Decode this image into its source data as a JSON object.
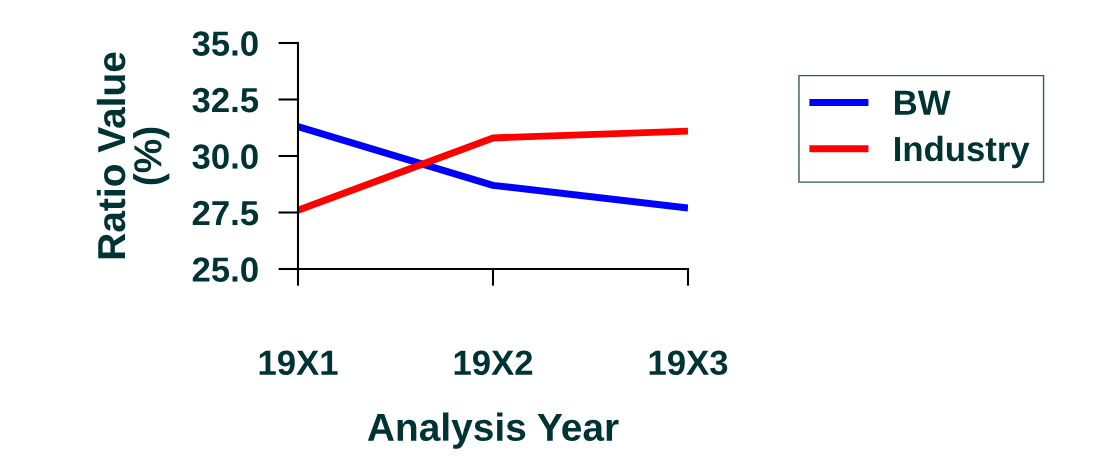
{
  "chart_data": {
    "type": "line",
    "xlabel": "Analysis Year",
    "ylabel": "Ratio Value\n(%)",
    "categories": [
      "19X1",
      "19X2",
      "19X3"
    ],
    "series": [
      {
        "name": "BW",
        "color": "#0000ff",
        "values": [
          31.3,
          28.7,
          27.7
        ]
      },
      {
        "name": "Industry",
        "color": "#ff0000",
        "values": [
          27.6,
          30.8,
          31.1
        ]
      }
    ],
    "ylim": [
      25.0,
      35.0
    ],
    "yticks": [
      {
        "value": 25.0,
        "label": "25.0"
      },
      {
        "value": 27.5,
        "label": "27.5"
      },
      {
        "value": 30.0,
        "label": "30.0"
      },
      {
        "value": 32.5,
        "label": "32.5"
      },
      {
        "value": 35.0,
        "label": "35.0"
      }
    ],
    "grid": false,
    "legend": "right",
    "marker": "none",
    "line_style": "solid"
  }
}
